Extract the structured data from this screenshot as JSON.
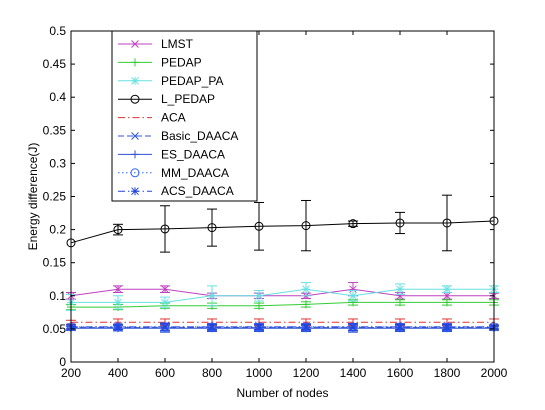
{
  "chart_data": {
    "type": "line",
    "xlabel": "Number of nodes",
    "ylabel": "Energy difference(J)",
    "x": [
      200,
      400,
      600,
      800,
      1000,
      1200,
      1400,
      1600,
      1800,
      2000
    ],
    "xlim": [
      200,
      2000
    ],
    "ylim": [
      0,
      0.5
    ],
    "xticks": [
      "200",
      "400",
      "600",
      "800",
      "1000",
      "1200",
      "1400",
      "1600",
      "1800",
      "2000"
    ],
    "yticks": [
      "0",
      "0.05",
      "0.1",
      "0.15",
      "0.2",
      "0.25",
      "0.3",
      "0.35",
      "0.4",
      "0.45",
      "0.5"
    ],
    "grid": false,
    "legend_position": "top-left",
    "series": [
      {
        "name": "LMST",
        "color": "#bf40bf",
        "marker": "x",
        "dash": "solid",
        "values": [
          0.1,
          0.11,
          0.11,
          0.1,
          0.1,
          0.1,
          0.11,
          0.1,
          0.1,
          0.1
        ],
        "err": [
          0.005,
          0.005,
          0.005,
          0.004,
          0.004,
          0.004,
          0.01,
          0.005,
          0.005,
          0.004
        ]
      },
      {
        "name": "PEDAP",
        "color": "#33cc33",
        "marker": "plus",
        "dash": "solid",
        "values": [
          0.083,
          0.083,
          0.085,
          0.085,
          0.085,
          0.087,
          0.09,
          0.09,
          0.09,
          0.09
        ],
        "err": [
          0.004,
          0.004,
          0.004,
          0.004,
          0.004,
          0.004,
          0.004,
          0.004,
          0.004,
          0.004
        ]
      },
      {
        "name": "PEDAP_PA",
        "color": "#66e0e0",
        "marker": "star",
        "dash": "solid",
        "values": [
          0.09,
          0.09,
          0.09,
          0.1,
          0.1,
          0.11,
          0.1,
          0.11,
          0.11,
          0.11
        ],
        "err": [
          0.012,
          0.01,
          0.008,
          0.015,
          0.008,
          0.01,
          0.008,
          0.008,
          0.005,
          0.005
        ]
      },
      {
        "name": "L_PEDAP",
        "color": "#000000",
        "marker": "circle",
        "dash": "solid",
        "values": [
          0.18,
          0.2,
          0.201,
          0.203,
          0.205,
          0.206,
          0.209,
          0.21,
          0.21,
          0.213
        ],
        "err": [
          0.0,
          0.008,
          0.035,
          0.028,
          0.036,
          0.038,
          0.004,
          0.016,
          0.042,
          0.0
        ]
      },
      {
        "name": "ACA",
        "color": "#e03030",
        "marker": "none",
        "dash": "dashdot",
        "values": [
          0.06,
          0.06,
          0.06,
          0.06,
          0.06,
          0.06,
          0.06,
          0.06,
          0.06,
          0.06
        ],
        "err": [
          0.003,
          0.005,
          0.005,
          0.005,
          0.005,
          0.005,
          0.005,
          0.005,
          0.005,
          0.005
        ]
      },
      {
        "name": "Basic_DAACA",
        "color": "#3050d0",
        "marker": "x",
        "dash": "dashed",
        "values": [
          0.052,
          0.052,
          0.052,
          0.052,
          0.052,
          0.052,
          0.052,
          0.052,
          0.052,
          0.052
        ],
        "err": [
          0.004,
          0.005,
          0.005,
          0.005,
          0.005,
          0.005,
          0.005,
          0.005,
          0.005,
          0.004
        ]
      },
      {
        "name": "ES_DAACA",
        "color": "#3050d0",
        "marker": "plus",
        "dash": "solid",
        "values": [
          0.051,
          0.051,
          0.051,
          0.051,
          0.051,
          0.051,
          0.051,
          0.051,
          0.051,
          0.051
        ],
        "err": [
          0.003,
          0.004,
          0.006,
          0.005,
          0.005,
          0.005,
          0.006,
          0.005,
          0.005,
          0.003
        ]
      },
      {
        "name": "MM_DAACA",
        "color": "#3366ff",
        "marker": "circle",
        "dash": "dotted",
        "values": [
          0.053,
          0.053,
          0.053,
          0.053,
          0.053,
          0.053,
          0.053,
          0.053,
          0.053,
          0.053
        ],
        "err": [
          0.003,
          0.004,
          0.006,
          0.005,
          0.005,
          0.005,
          0.005,
          0.005,
          0.005,
          0.003
        ]
      },
      {
        "name": "ACS_DAACA",
        "color": "#2244dd",
        "marker": "star",
        "dash": "dashdot",
        "values": [
          0.053,
          0.053,
          0.053,
          0.053,
          0.053,
          0.053,
          0.053,
          0.053,
          0.053,
          0.053
        ],
        "err": [
          0.003,
          0.004,
          0.005,
          0.004,
          0.004,
          0.004,
          0.005,
          0.004,
          0.004,
          0.003
        ]
      }
    ]
  }
}
